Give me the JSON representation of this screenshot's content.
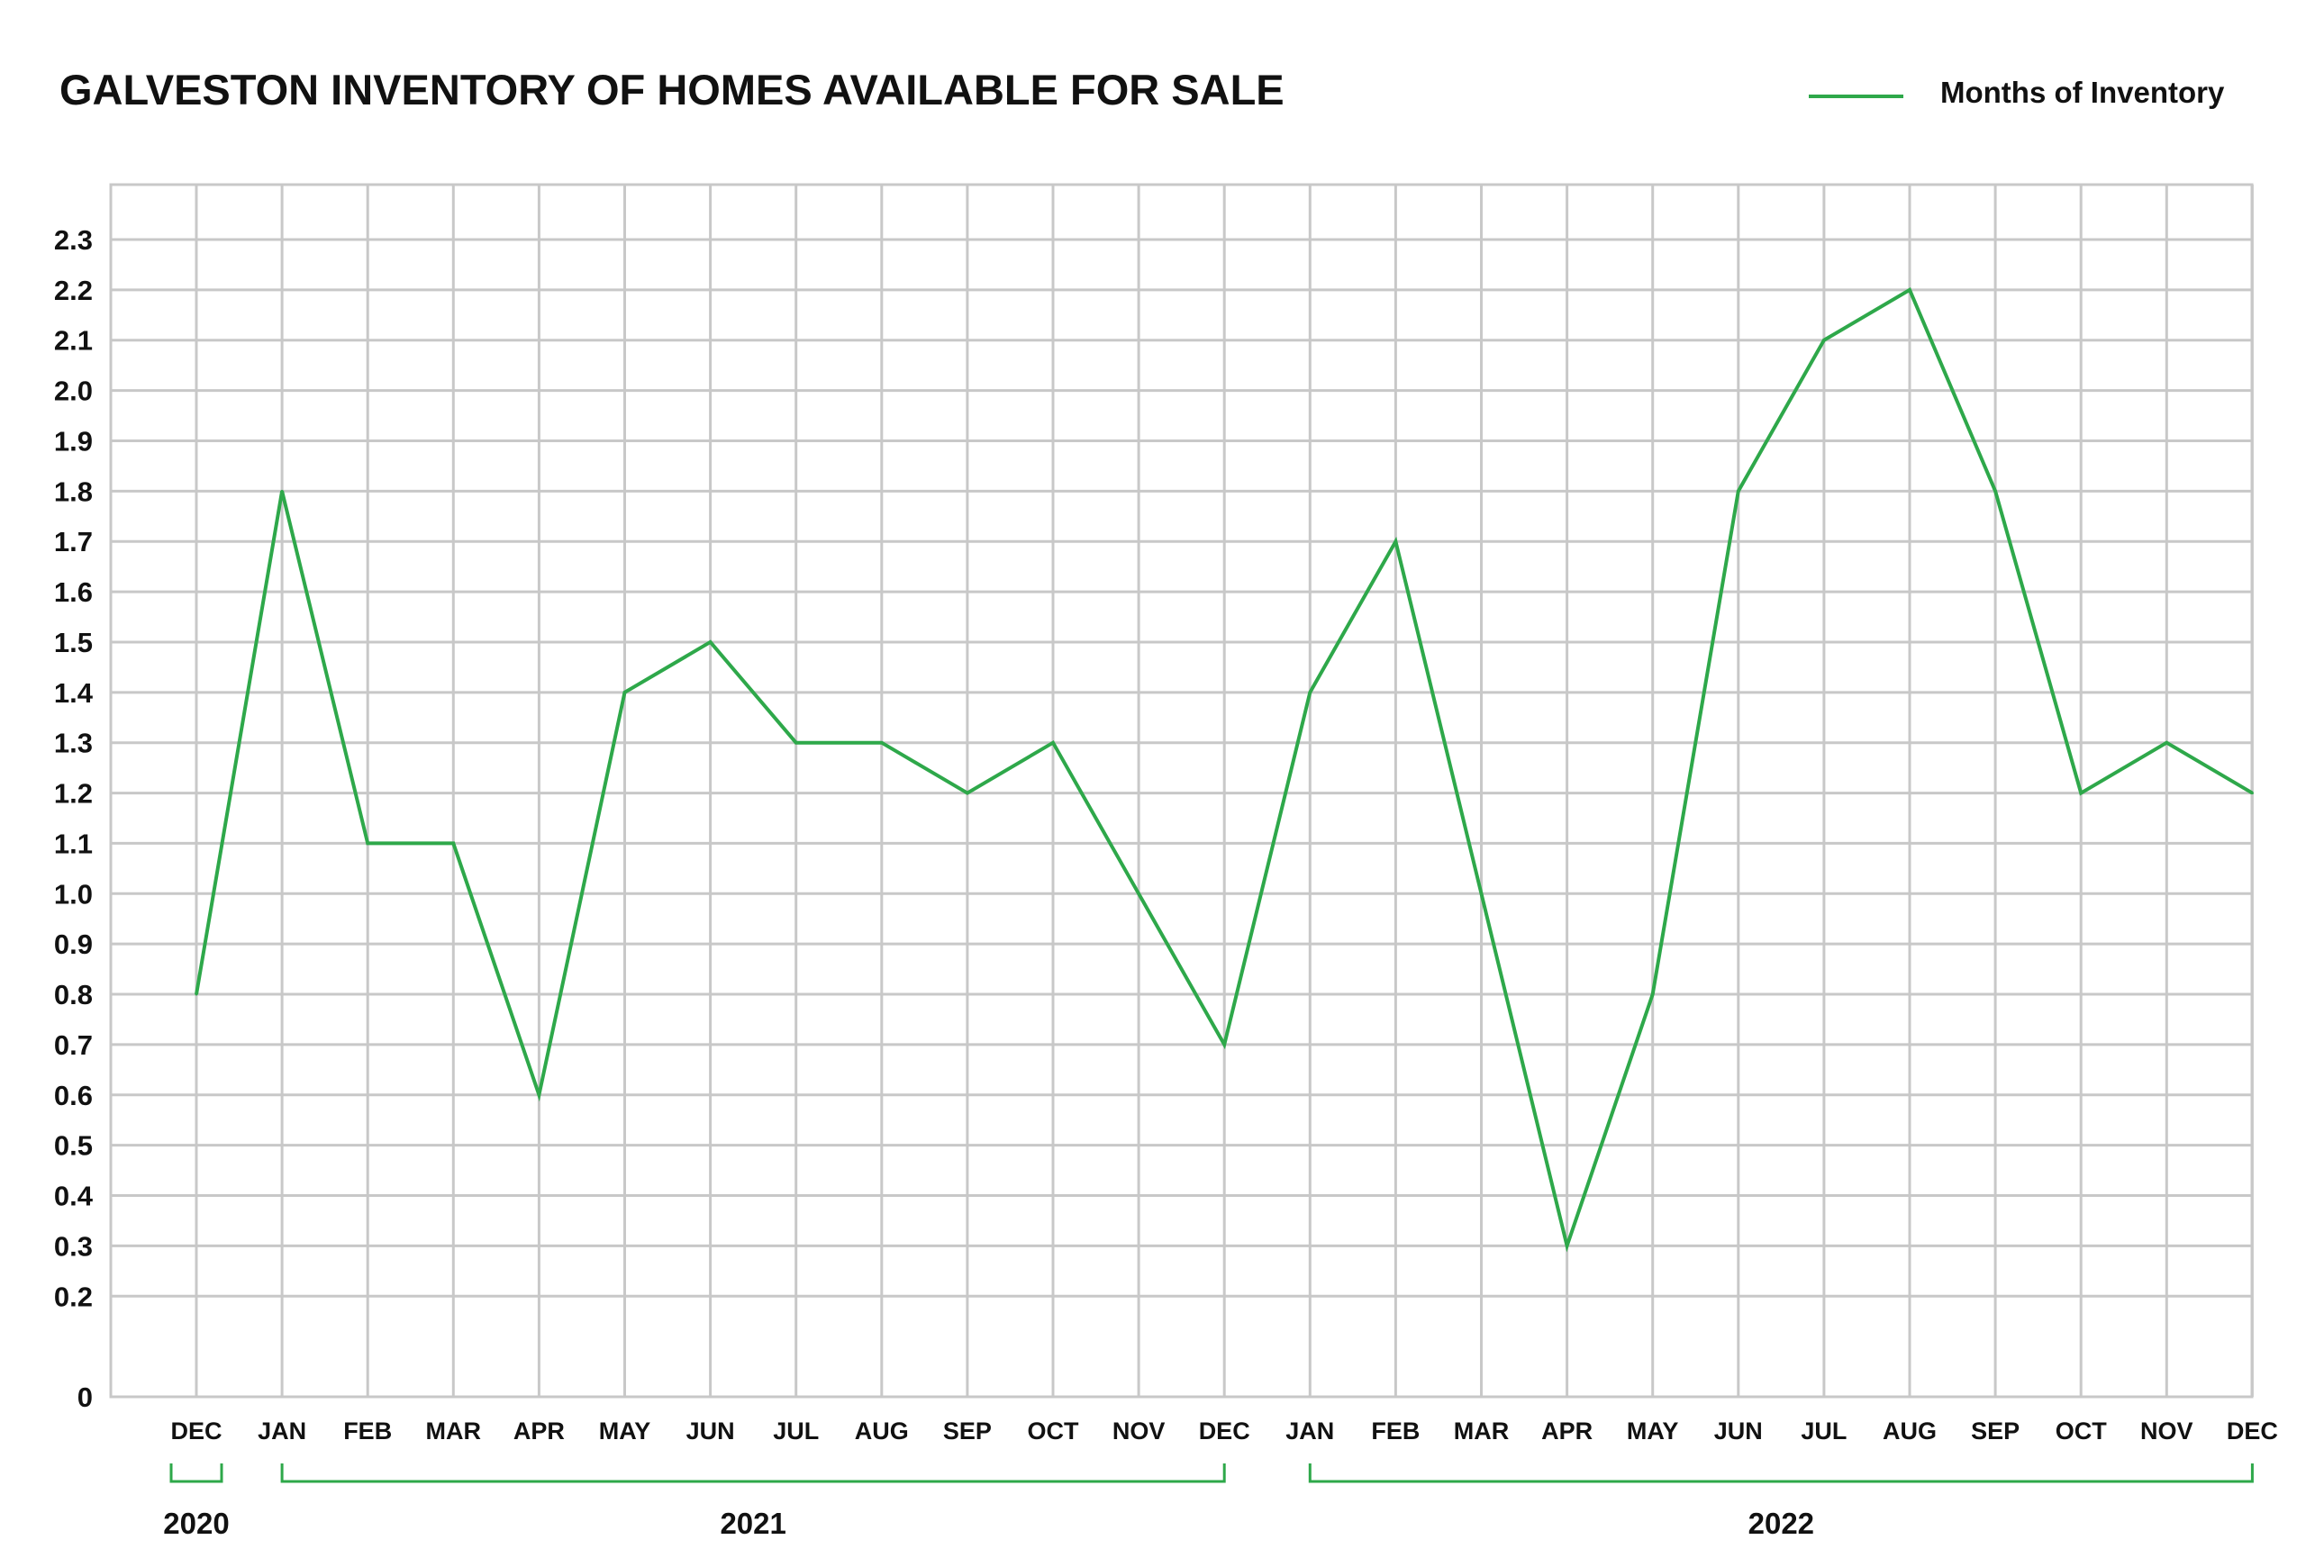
{
  "chart_data": {
    "type": "line",
    "title": "GALVESTON INVENTORY OF HOMES AVAILABLE FOR SALE",
    "xlabel": "",
    "ylabel": "",
    "grid": true,
    "legend_position": "top-right",
    "ylim": [
      0,
      2.3
    ],
    "y_ticks": [
      "0",
      "0.2",
      "0.3",
      "0.4",
      "0.5",
      "0.6",
      "0.7",
      "0.8",
      "0.9",
      "1.0",
      "1.1",
      "1.2",
      "1.3",
      "1.4",
      "1.5",
      "1.6",
      "1.7",
      "1.8",
      "1.9",
      "2.0",
      "2.1",
      "2.2",
      "2.3"
    ],
    "categories": [
      "DEC",
      "JAN",
      "FEB",
      "MAR",
      "APR",
      "MAY",
      "JUN",
      "JUL",
      "AUG",
      "SEP",
      "OCT",
      "NOV",
      "DEC",
      "JAN",
      "FEB",
      "MAR",
      "APR",
      "MAY",
      "JUN",
      "JUL",
      "AUG",
      "SEP",
      "OCT",
      "NOV",
      "DEC"
    ],
    "year_groups": [
      {
        "label": "2020",
        "start": 0,
        "end": 0
      },
      {
        "label": "2021",
        "start": 1,
        "end": 12
      },
      {
        "label": "2022",
        "start": 13,
        "end": 24
      }
    ],
    "series": [
      {
        "name": "Months of Inventory",
        "color": "#2ea84a",
        "values": [
          0.8,
          1.8,
          1.1,
          1.1,
          0.6,
          1.4,
          1.5,
          1.3,
          1.3,
          1.2,
          1.3,
          1.0,
          0.7,
          1.4,
          1.7,
          1.0,
          0.3,
          0.8,
          1.8,
          2.1,
          2.2,
          1.8,
          1.2,
          1.3,
          1.2
        ]
      }
    ]
  },
  "colors": {
    "line": "#2ea84a",
    "grid": "#c8c8c8",
    "text": "#111111",
    "bracket": "#2ea84a"
  }
}
